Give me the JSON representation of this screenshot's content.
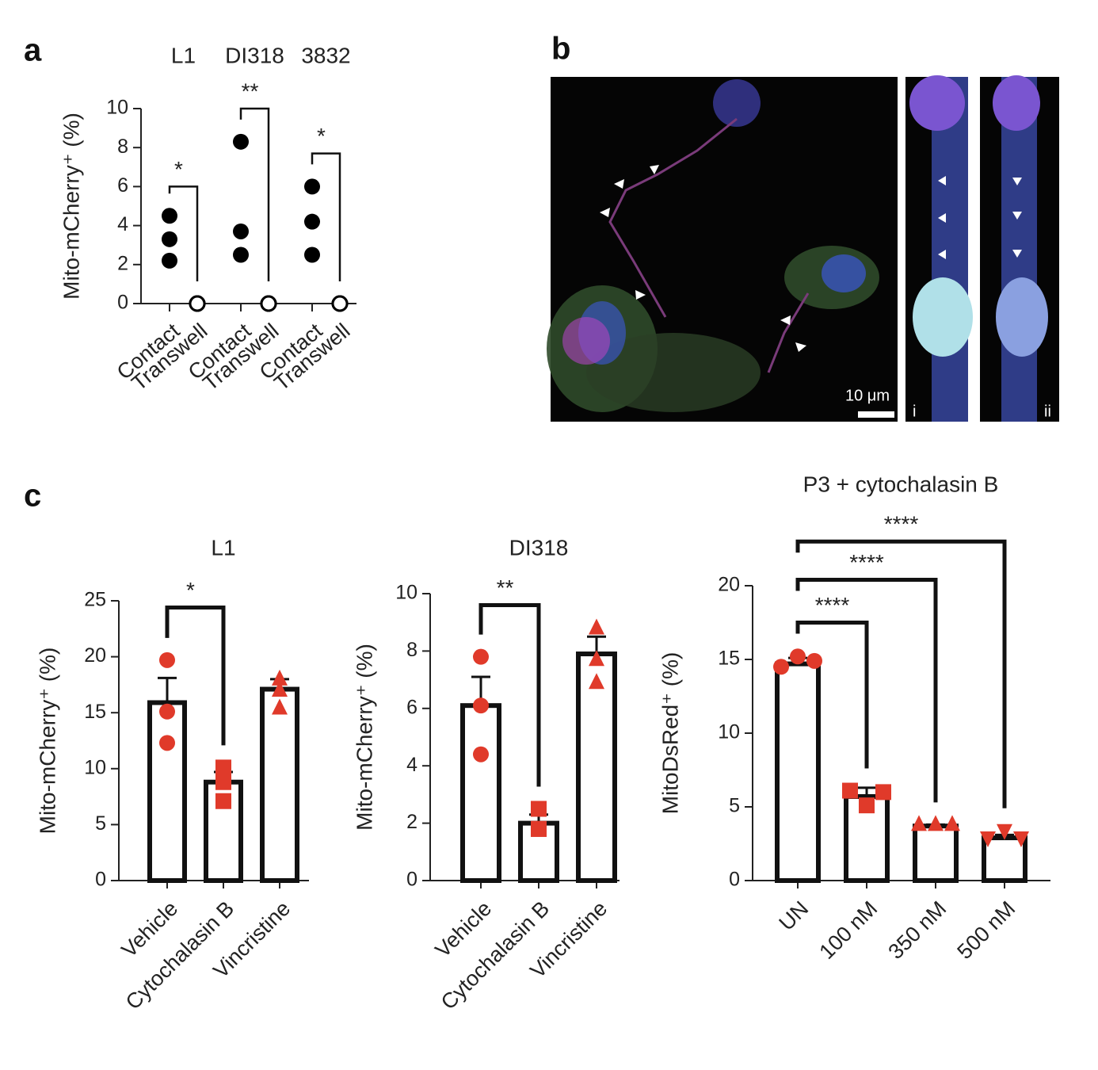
{
  "panel_labels": [
    "a",
    "b",
    "c"
  ],
  "image": {
    "scale_bar": "10 μm",
    "insets": [
      "i",
      "ii"
    ]
  },
  "chart_data": [
    {
      "type": "dot",
      "groups": [
        "L1",
        "DI318",
        "3832"
      ],
      "categories": [
        "Contact",
        "Transwell",
        "Contact",
        "Transwell",
        "Contact",
        "Transwell"
      ],
      "points": [
        [
          4.5,
          3.3,
          2.2
        ],
        [
          0,
          0,
          0
        ],
        [
          8.3,
          3.7,
          2.5
        ],
        [
          0,
          0,
          0
        ],
        [
          6.0,
          4.2,
          2.5
        ],
        [
          0,
          0,
          0
        ]
      ],
      "markers": [
        "circle",
        "open-circle",
        "circle",
        "open-circle",
        "circle",
        "open-circle"
      ],
      "color": "#000000",
      "ylabel": "Mito-mCherry⁺ (%)",
      "ylim": [
        0,
        10
      ],
      "yticks": [
        0,
        2,
        4,
        6,
        8,
        10
      ],
      "comparisons": [
        {
          "label": "*",
          "between": [
            0,
            1
          ],
          "y": 6
        },
        {
          "label": "**",
          "between": [
            2,
            3
          ],
          "y": 10
        },
        {
          "label": "*",
          "between": [
            4,
            5
          ],
          "y": 7.7
        }
      ]
    },
    {
      "type": "bar",
      "title": "L1",
      "categories": [
        "Vehicle",
        "Cytochalasin B",
        "Vincristine"
      ],
      "values": [
        15.9,
        8.8,
        17.1
      ],
      "errors": [
        2.2,
        0.9,
        0.9
      ],
      "points": [
        [
          19.7,
          15.1,
          12.3
        ],
        [
          10.1,
          8.8,
          7.1
        ],
        [
          18.0,
          17.0,
          15.4
        ]
      ],
      "markers": [
        "circle",
        "square",
        "triangle"
      ],
      "color": "#e03a2a",
      "ylabel": "Mito-mCherry⁺ (%)",
      "ylim": [
        0,
        25
      ],
      "yticks": [
        0,
        5,
        10,
        15,
        20,
        25
      ],
      "comparisons": [
        {
          "label": "*",
          "between": [
            0,
            1
          ],
          "y": 24.4
        }
      ]
    },
    {
      "type": "bar",
      "title": "DI318",
      "categories": [
        "Vehicle",
        "Cytochalasin B",
        "Vincristine"
      ],
      "values": [
        6.1,
        2.0,
        7.9
      ],
      "errors": [
        1.0,
        0.3,
        0.6
      ],
      "points": [
        [
          7.8,
          6.1,
          4.4
        ],
        [
          2.5,
          1.8,
          1.8
        ],
        [
          8.8,
          7.7,
          6.9
        ]
      ],
      "markers": [
        "circle",
        "square",
        "triangle"
      ],
      "color": "#e03a2a",
      "ylabel": "Mito-mCherry⁺ (%)",
      "ylim": [
        0,
        10
      ],
      "yticks": [
        0,
        2,
        4,
        6,
        8,
        10
      ],
      "comparisons": [
        {
          "label": "**",
          "between": [
            0,
            1
          ],
          "y": 9.6
        }
      ]
    },
    {
      "type": "bar",
      "title": "P3 + cytochalasin B",
      "categories": [
        "UN",
        "100 nM",
        "350 nM",
        "500 nM"
      ],
      "values": [
        14.7,
        5.7,
        3.7,
        2.9
      ],
      "errors": [
        0.4,
        0.6,
        0.1,
        0.2
      ],
      "points": [
        [
          14.5,
          15.2,
          14.9
        ],
        [
          6.1,
          5.1,
          6.0
        ],
        [
          3.8,
          3.8,
          3.8
        ],
        [
          2.9,
          3.4,
          2.9
        ]
      ],
      "markers": [
        "circle",
        "square",
        "triangle",
        "triangle-down"
      ],
      "color": "#e03a2a",
      "ylabel": "MitoDsRed⁺ (%)",
      "ylim": [
        0,
        20
      ],
      "yticks": [
        0,
        5,
        10,
        15,
        20
      ],
      "comparisons": [
        {
          "label": "****",
          "between": [
            0,
            1
          ],
          "y": 17.5
        },
        {
          "label": "****",
          "between": [
            0,
            2
          ],
          "y": 20.4
        },
        {
          "label": "****",
          "between": [
            0,
            3
          ],
          "y": 23.0
        }
      ]
    }
  ]
}
